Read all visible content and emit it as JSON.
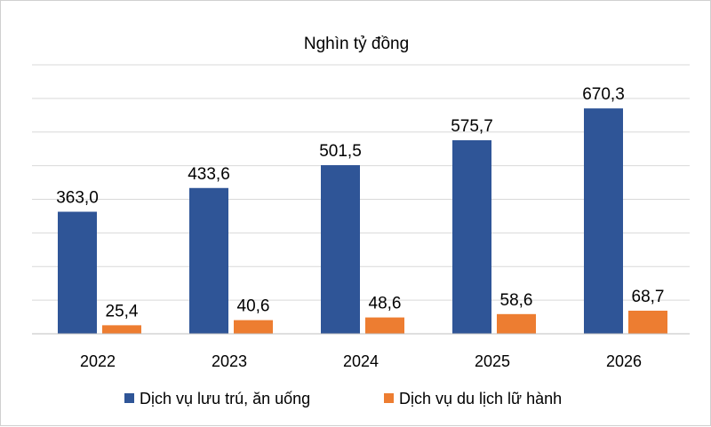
{
  "chart_data": {
    "type": "bar",
    "title": "Nghìn tỷ đồng",
    "categories": [
      "2022",
      "2023",
      "2024",
      "2025",
      "2026"
    ],
    "series": [
      {
        "name": "Dịch vụ lưu trú, ăn uống",
        "color": "#2F5597",
        "values": [
          363.0,
          433.6,
          501.5,
          575.7,
          670.3
        ],
        "labels": [
          "363,0",
          "433,6",
          "501,5",
          "575,7",
          "670,3"
        ]
      },
      {
        "name": "Dịch vụ du lịch lữ hành",
        "color": "#ED7D31",
        "values": [
          25.4,
          40.6,
          48.6,
          58.6,
          68.7
        ],
        "labels": [
          "25,4",
          "40,6",
          "48,6",
          "58,6",
          "68,7"
        ]
      }
    ],
    "ylim": [
      0,
      800
    ],
    "grid": true,
    "y_tick_labels_visible": false,
    "legend_position": "bottom"
  }
}
